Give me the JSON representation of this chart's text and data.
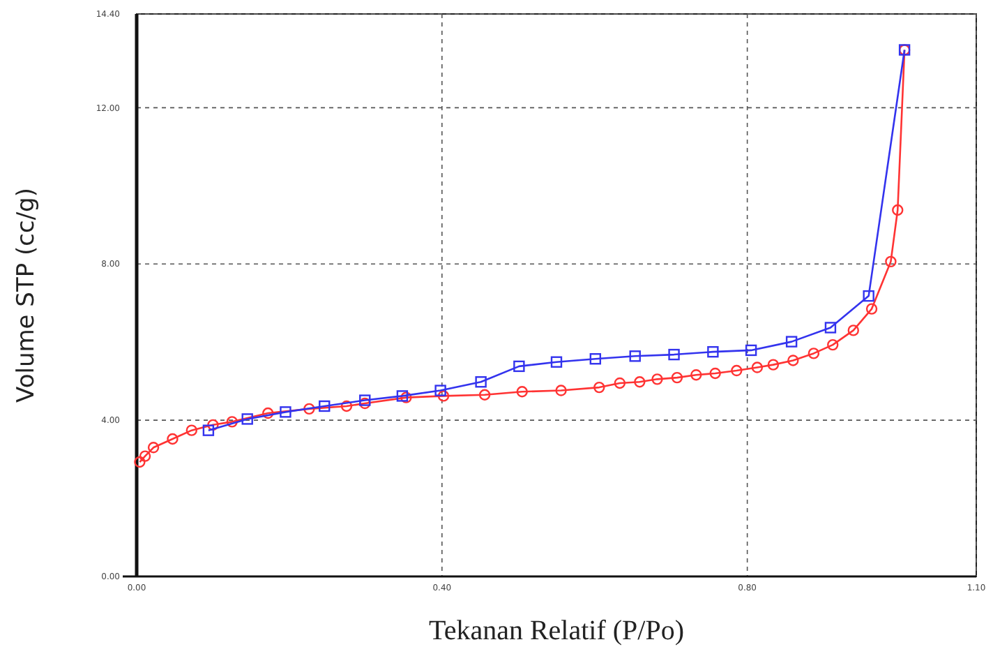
{
  "chart_data": {
    "type": "line",
    "xlabel": "Tekanan Relatif (P/Po)",
    "ylabel": "Volume STP (cc/g)",
    "xlim": [
      0,
      1.1
    ],
    "xticks": [
      {
        "value": 0,
        "label": "0.00"
      },
      {
        "value": 0.4,
        "label": "0.40"
      },
      {
        "value": 0.8,
        "label": "0.80"
      },
      {
        "value": 1.1,
        "label": "1.10"
      }
    ],
    "ylim": [
      0,
      14.4
    ],
    "yticks": [
      {
        "value": 0,
        "label": "0.00"
      },
      {
        "value": 4,
        "label": "4.00"
      },
      {
        "value": 8,
        "label": "8.00"
      },
      {
        "value": 12,
        "label": "12.00"
      },
      {
        "value": 14.4,
        "label": "14.40"
      }
    ],
    "grid": true,
    "line_style": "solid",
    "series": [
      {
        "color": "#ff3333",
        "marker": "circle",
        "x": [
          0.004,
          0.011,
          0.022,
          0.047,
          0.072,
          0.1,
          0.125,
          0.172,
          0.226,
          0.275,
          0.299,
          0.353,
          0.402,
          0.456,
          0.505,
          0.556,
          0.606,
          0.633,
          0.659,
          0.682,
          0.708,
          0.733,
          0.758,
          0.786,
          0.813,
          0.834,
          0.86,
          0.887,
          0.912,
          0.939,
          0.963,
          0.988,
          0.997,
          1.006
        ],
        "values": [
          2.93,
          3.08,
          3.3,
          3.52,
          3.74,
          3.88,
          3.96,
          4.18,
          4.29,
          4.36,
          4.43,
          4.58,
          4.62,
          4.65,
          4.73,
          4.76,
          4.84,
          4.95,
          4.98,
          5.05,
          5.09,
          5.16,
          5.2,
          5.27,
          5.35,
          5.42,
          5.53,
          5.71,
          5.93,
          6.3,
          6.85,
          8.06,
          9.38,
          13.48
        ]
      },
      {
        "color": "#3333ee",
        "marker": "square",
        "x": [
          0.094,
          0.145,
          0.195,
          0.246,
          0.299,
          0.348,
          0.398,
          0.451,
          0.501,
          0.55,
          0.601,
          0.653,
          0.704,
          0.755,
          0.805,
          0.858,
          0.909,
          0.959,
          1.006
        ],
        "values": [
          3.74,
          4.03,
          4.21,
          4.36,
          4.51,
          4.62,
          4.76,
          4.98,
          5.38,
          5.49,
          5.57,
          5.64,
          5.68,
          5.75,
          5.79,
          6.01,
          6.37,
          7.18,
          13.48
        ]
      }
    ]
  }
}
